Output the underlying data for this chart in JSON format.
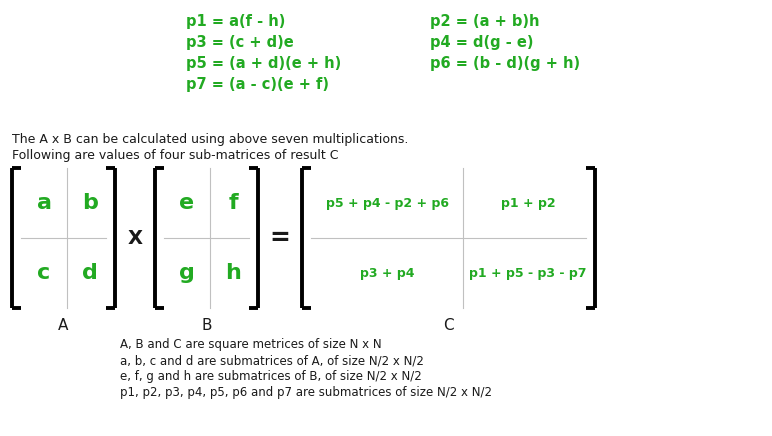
{
  "bg_color": "#ffffff",
  "green_color": "#22aa22",
  "black_color": "#1a1a1a",
  "formulas_left": [
    "p1 = a(f - h)",
    "p3 = (c + d)e",
    "p5 = (a + d)(e + h)",
    "p7 = (a - c)(e + f)"
  ],
  "formulas_right": [
    "p2 = (a + b)h",
    "p4 = d(g - e)",
    "p6 = (b - d)(g + h)"
  ],
  "text1": "The A x B can be calculated using above seven multiplications.",
  "text2": "Following are values of four sub-matrices of result C",
  "matrix_A": [
    [
      "a",
      "b"
    ],
    [
      "c",
      "d"
    ]
  ],
  "matrix_B": [
    [
      "e",
      "f"
    ],
    [
      "g",
      "h"
    ]
  ],
  "matrix_C": [
    [
      "p5 + p4 - p2 + p6",
      "p1 + p2"
    ],
    [
      "p3 + p4",
      "p1 + p5 - p3 - p7"
    ]
  ],
  "label_A": "A",
  "label_B": "B",
  "label_C": "C",
  "notes": [
    "A, B and C are square metrices of size N x N",
    "a, b, c and d are submatrices of A, of size N/2 x N/2",
    "e, f, g and h are submatrices of B, of size N/2 x N/2",
    "p1, p2, p3, p4, p5, p6 and p7 are submatrices of size N/2 x N/2"
  ]
}
